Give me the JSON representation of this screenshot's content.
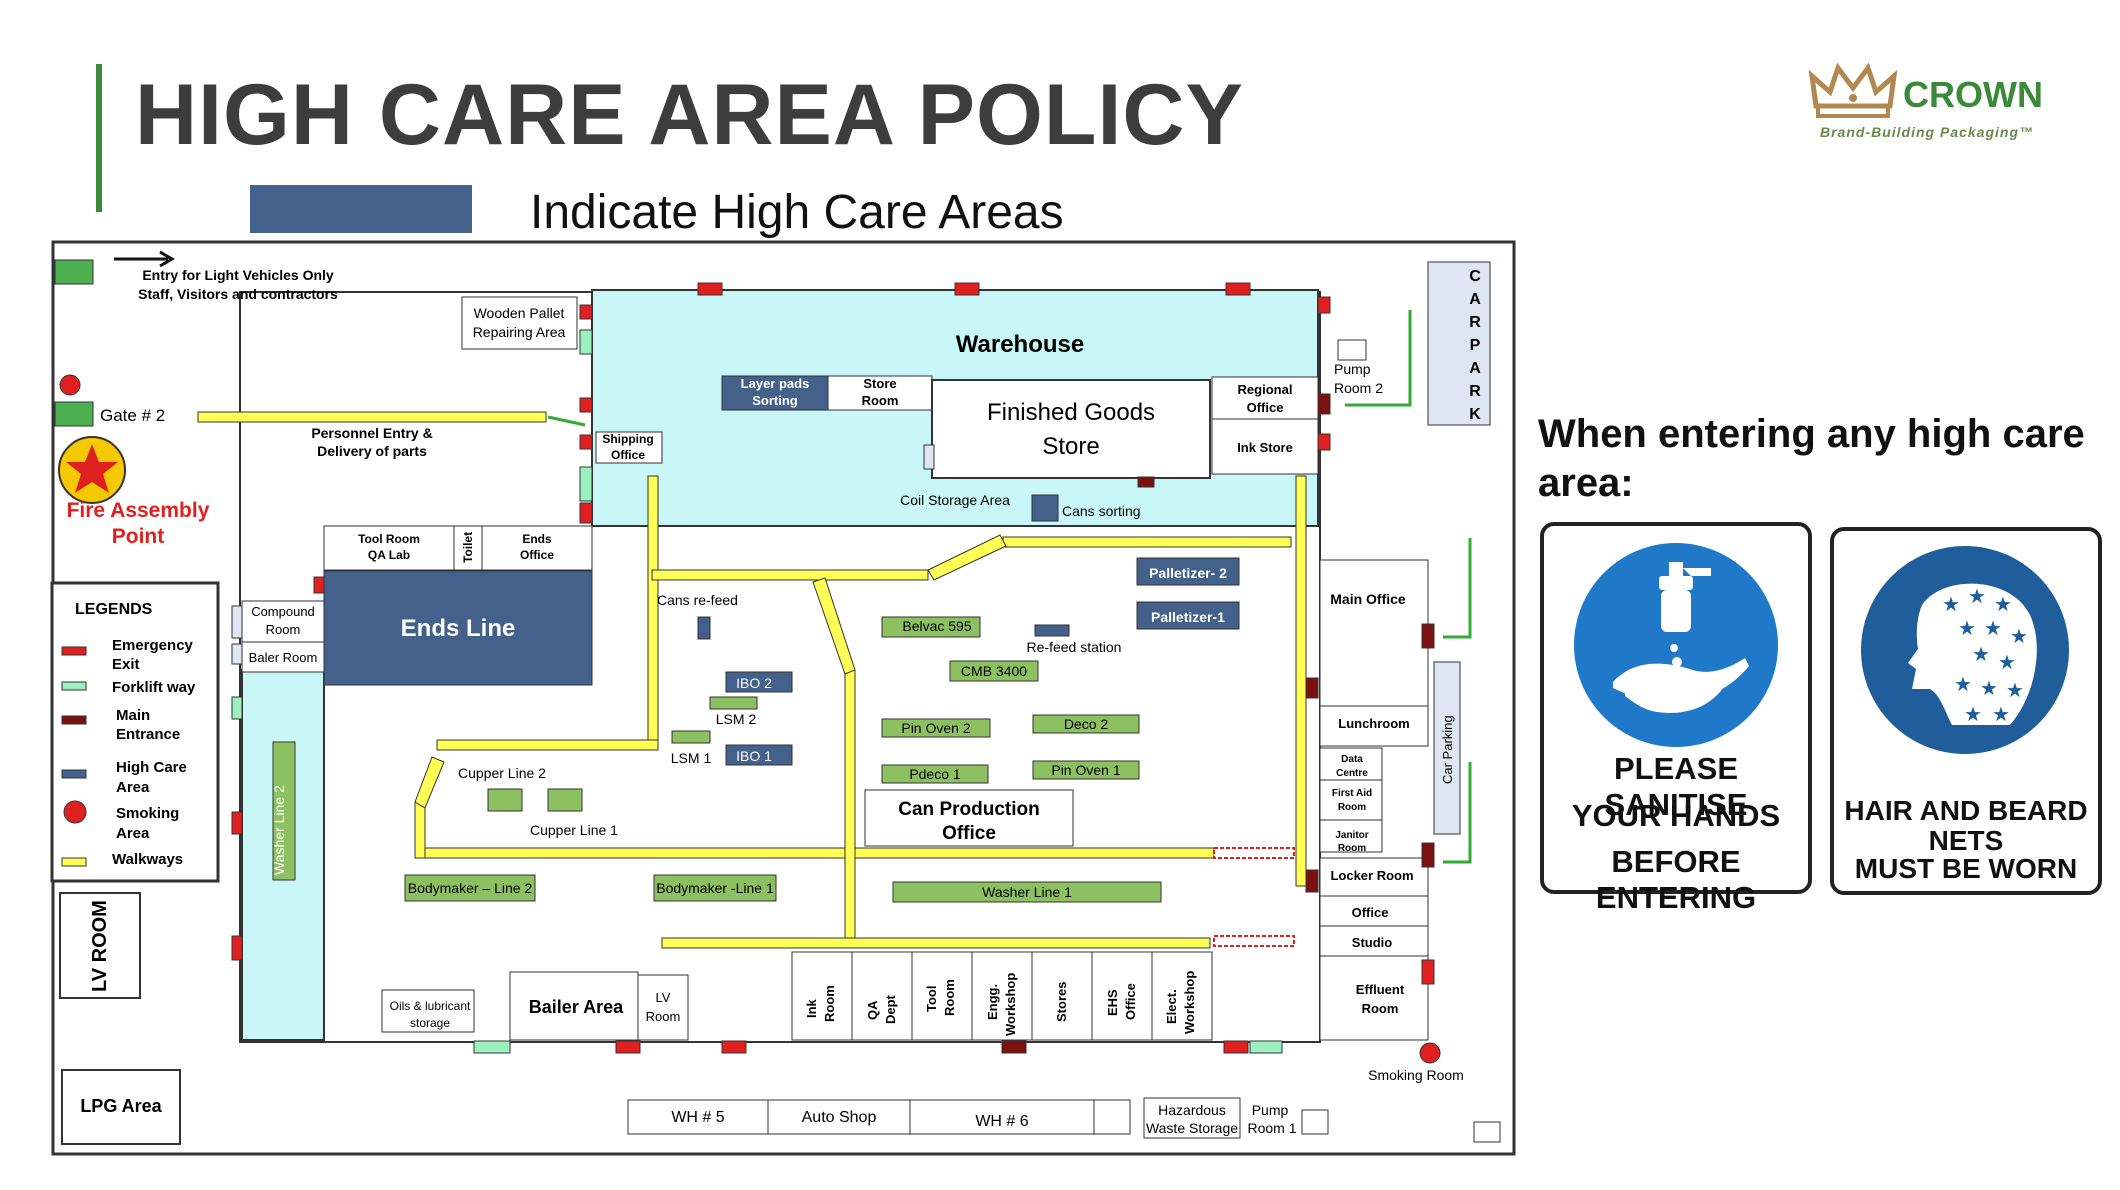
{
  "title": "HIGH CARE AREA POLICY",
  "legend_caption": "Indicate High Care Areas",
  "logo": {
    "name": "CROWN",
    "tagline": "Brand-Building Packaging™"
  },
  "colors": {
    "high_care": "#44618c",
    "walkway": "#ffff55",
    "emergency_exit": "#e02020",
    "forklift_way": "#9df0c0",
    "main_entrance": "#7a1010",
    "machine_green": "#8cc060",
    "warehouse_fill": "#c9f6f6"
  },
  "map": {
    "entry_note": [
      "Entry for Light Vehicles Only",
      "Staff, Visitors and contractors"
    ],
    "gate2": "Gate # 2",
    "personnel_entry": [
      "Personnel Entry &",
      "Delivery of parts"
    ],
    "fire_assembly": [
      "Fire Assembly",
      "Point"
    ],
    "wooden_pallet": [
      "Wooden Pallet",
      "Repairing Area"
    ],
    "warehouse": "Warehouse",
    "layer_pads": [
      "Layer pads",
      "Sorting"
    ],
    "store_room": [
      "Store",
      "Room"
    ],
    "finished_goods": [
      "Finished Goods",
      "Store"
    ],
    "regional_office": [
      "Regional",
      "Office"
    ],
    "ink_store": "Ink Store",
    "shipping_office": [
      "Shipping",
      "Office"
    ],
    "coil_storage": "Coil  Storage Area",
    "cans_sorting": "Cans sorting",
    "pump_room2": [
      "Pump",
      "Room 2"
    ],
    "car_park": [
      "C",
      "A",
      "R",
      "P",
      "A",
      "R",
      "K"
    ],
    "tool_room": [
      "Tool Room",
      "QA Lab"
    ],
    "toilet": "Toilet",
    "ends_office": [
      "Ends",
      "Office"
    ],
    "ends_line": "Ends Line",
    "compound_room": [
      "Compound",
      "Room"
    ],
    "baler_room": "Baler Room",
    "cans_refeed": "Cans re-feed",
    "palletizer2": "Palletizer- 2",
    "palletizer1": "Palletizer-1",
    "belvac": "Belvac 595",
    "refeed_station": "Re-feed station",
    "cmb": "CMB 3400",
    "ibo2": "IBO 2",
    "lsm2": "LSM  2",
    "lsm1": "LSM   1",
    "ibo1": "IBO 1",
    "pin_oven2": "Pin Oven  2",
    "deco2": "Deco 2",
    "pdeco1": "Pdeco 1",
    "pin_oven1": "Pin Oven 1",
    "can_production_office": [
      "Can Production",
      "Office"
    ],
    "cupper_line2": "Cupper Line 2",
    "cupper_line1": "Cupper Line 1",
    "washer_line2": "Washer Line 2",
    "bodymaker2": "Bodymaker – Line 2",
    "bodymaker1": "Bodymaker -Line 1",
    "washer_line1": "Washer Line 1",
    "main_office": "Main Office",
    "car_parking": "Car Parking",
    "lunchroom": "Lunchroom",
    "data_centre": [
      "Data",
      "Centre"
    ],
    "first_aid": [
      "First Aid",
      "Room"
    ],
    "janitor": [
      "Janitor",
      "Room"
    ],
    "locker_room": "Locker Room",
    "office": "Office",
    "studio": "Studio",
    "effluent_room": [
      "Effluent",
      "Room"
    ],
    "smoking_room": "Smoking Room",
    "oils_storage": [
      "Oils & lubricant",
      "storage"
    ],
    "bailer_area": "Bailer Area",
    "lv_room_small": [
      "LV",
      "Room"
    ],
    "bottom_rooms": [
      [
        "Ink",
        "Room"
      ],
      [
        "QA",
        "Dept"
      ],
      [
        "Tool",
        "Room"
      ],
      [
        "Engg.",
        "Workshop"
      ],
      [
        "Stores"
      ],
      [
        "EHS",
        "Office"
      ],
      [
        "Elect.",
        "Workshop"
      ]
    ],
    "lv_room": "LV ROOM",
    "lpg_area": "LPG Area",
    "wh5": "WH # 5",
    "auto_shop": "Auto Shop",
    "wh6": "WH # 6",
    "hazardous_waste": [
      "Hazardous",
      "Waste Storage"
    ],
    "pump_room1": [
      "Pump",
      "Room 1"
    ]
  },
  "legends": {
    "heading": "LEGENDS",
    "items": [
      {
        "label": [
          "Emergency",
          "Exit"
        ]
      },
      {
        "label": [
          "Forklift way"
        ]
      },
      {
        "label": [
          "Main",
          "Entrance"
        ]
      },
      {
        "label": [
          "High Care",
          "Area"
        ]
      },
      {
        "label": [
          "Smoking",
          "Area"
        ]
      },
      {
        "label": [
          "Walkways"
        ]
      }
    ]
  },
  "notice": {
    "heading": "When entering any high care area:",
    "sign1": [
      "PLEASE SANITISE",
      "YOUR HANDS",
      "BEFORE ENTERING"
    ],
    "sign1_icon": "hand-sanitiser-icon",
    "sign2": [
      "HAIR AND BEARD",
      "NETS",
      "MUST BE WORN"
    ],
    "sign2_icon": "hair-beard-net-icon"
  }
}
